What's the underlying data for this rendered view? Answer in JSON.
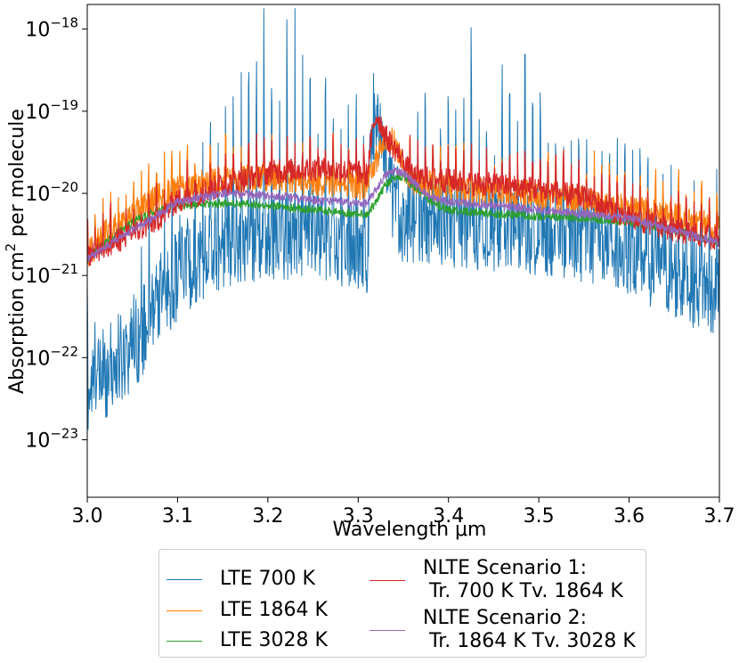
{
  "chart_data": {
    "type": "line",
    "title": "",
    "xlabel": "Wavelength μm",
    "ylabel": "Absorption cm² per molecule",
    "ylabel_parts": {
      "pre": "Absorption cm",
      "sup": "2",
      "post": " per molecule"
    },
    "xscale": "linear",
    "yscale": "log",
    "xlim": [
      3.0,
      3.7
    ],
    "ylim_exponent": [
      -23.7,
      -17.7
    ],
    "xticks": [
      3.0,
      3.1,
      3.2,
      3.3,
      3.4,
      3.5,
      3.6,
      3.7
    ],
    "xtick_labels": [
      "3.0",
      "3.1",
      "3.2",
      "3.3",
      "3.4",
      "3.5",
      "3.6",
      "3.7"
    ],
    "yticks": [
      {
        "base": "10",
        "exp": "−18",
        "value": -18
      },
      {
        "base": "10",
        "exp": "−19",
        "value": -19
      },
      {
        "base": "10",
        "exp": "−20",
        "value": -20
      },
      {
        "base": "10",
        "exp": "−21",
        "value": -21
      },
      {
        "base": "10",
        "exp": "−22",
        "value": -22
      },
      {
        "base": "10",
        "exp": "−23",
        "value": -23
      }
    ],
    "grid": false,
    "legend_position": "bottom-outside",
    "series": [
      {
        "name": "LTE 700 K",
        "color": "#1f77b4",
        "noise": 0.55,
        "spikes": true,
        "x": [
          3.0,
          3.02,
          3.04,
          3.06,
          3.08,
          3.1,
          3.12,
          3.15,
          3.2,
          3.25,
          3.3,
          3.31,
          3.315,
          3.32,
          3.325,
          3.33,
          3.34,
          3.35,
          3.4,
          3.45,
          3.5,
          3.55,
          3.6,
          3.65,
          3.7
        ],
        "log_y": [
          -22.4,
          -22.2,
          -22.0,
          -21.7,
          -21.3,
          -21.0,
          -20.8,
          -20.6,
          -20.5,
          -20.5,
          -20.65,
          -20.7,
          -19.2,
          -18.9,
          -19.3,
          -19.8,
          -20.1,
          -20.3,
          -20.35,
          -20.4,
          -20.45,
          -20.55,
          -20.7,
          -21.0,
          -21.2
        ]
      },
      {
        "name": "LTE 1864 K",
        "color": "#ff7f0e",
        "noise": 0.18,
        "spikes": true,
        "x": [
          3.0,
          3.02,
          3.05,
          3.08,
          3.1,
          3.15,
          3.2,
          3.25,
          3.3,
          3.31,
          3.32,
          3.325,
          3.33,
          3.34,
          3.35,
          3.36,
          3.4,
          3.45,
          3.5,
          3.55,
          3.6,
          3.65,
          3.7
        ],
        "log_y": [
          -20.75,
          -20.5,
          -20.25,
          -20.05,
          -19.95,
          -19.85,
          -19.82,
          -19.85,
          -19.9,
          -19.9,
          -19.6,
          -19.4,
          -19.3,
          -19.4,
          -19.65,
          -19.85,
          -19.95,
          -19.98,
          -20.02,
          -20.1,
          -20.2,
          -20.3,
          -20.4
        ]
      },
      {
        "name": "LTE 3028 K",
        "color": "#2ca02c",
        "noise": 0.05,
        "spikes": false,
        "x": [
          3.0,
          3.02,
          3.05,
          3.08,
          3.1,
          3.15,
          3.2,
          3.25,
          3.3,
          3.31,
          3.32,
          3.33,
          3.34,
          3.35,
          3.36,
          3.38,
          3.4,
          3.45,
          3.5,
          3.55,
          3.6,
          3.65,
          3.7
        ],
        "log_y": [
          -20.8,
          -20.6,
          -20.35,
          -20.2,
          -20.15,
          -20.12,
          -20.15,
          -20.2,
          -20.25,
          -20.25,
          -20.1,
          -19.9,
          -19.8,
          -19.8,
          -19.9,
          -20.1,
          -20.2,
          -20.25,
          -20.28,
          -20.3,
          -20.35,
          -20.45,
          -20.6
        ]
      },
      {
        "name": "NLTE Scenario 1:\n Tr. 700 K Tv. 1864 K",
        "color": "#d62728",
        "noise": 0.15,
        "spikes": true,
        "x": [
          3.0,
          3.02,
          3.05,
          3.08,
          3.1,
          3.15,
          3.2,
          3.25,
          3.3,
          3.31,
          3.315,
          3.32,
          3.325,
          3.33,
          3.34,
          3.35,
          3.36,
          3.4,
          3.45,
          3.5,
          3.55,
          3.6,
          3.65,
          3.7
        ],
        "log_y": [
          -20.75,
          -20.65,
          -20.5,
          -20.3,
          -20.1,
          -19.9,
          -19.75,
          -19.7,
          -19.75,
          -19.78,
          -19.3,
          -19.05,
          -19.15,
          -19.3,
          -19.45,
          -19.6,
          -19.8,
          -19.85,
          -19.9,
          -19.95,
          -20.05,
          -20.3,
          -20.45,
          -20.55
        ]
      },
      {
        "name": "NLTE Scenario 2:\n Tr. 1864 K Tv. 3028 K",
        "color": "#9467bd",
        "noise": 0.05,
        "spikes": false,
        "x": [
          3.0,
          3.02,
          3.05,
          3.08,
          3.1,
          3.15,
          3.2,
          3.25,
          3.3,
          3.31,
          3.32,
          3.33,
          3.34,
          3.35,
          3.36,
          3.38,
          3.4,
          3.45,
          3.5,
          3.55,
          3.6,
          3.65,
          3.7
        ],
        "log_y": [
          -20.8,
          -20.65,
          -20.45,
          -20.25,
          -20.1,
          -20.0,
          -20.02,
          -20.08,
          -20.12,
          -20.12,
          -19.95,
          -19.78,
          -19.72,
          -19.75,
          -19.85,
          -20.05,
          -20.1,
          -20.15,
          -20.2,
          -20.25,
          -20.3,
          -20.45,
          -20.6
        ]
      }
    ]
  }
}
